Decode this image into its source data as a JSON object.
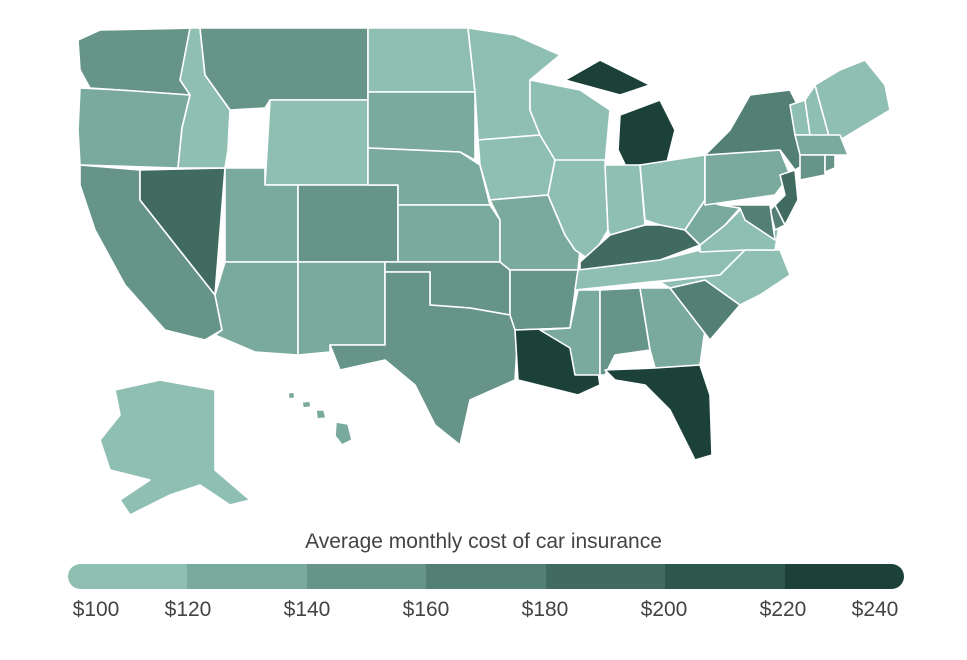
{
  "legend": {
    "title": "Average monthly cost of car insurance",
    "ticks": [
      "$100",
      "$120",
      "$140",
      "$160",
      "$180",
      "$200",
      "$220",
      "$240"
    ],
    "colors": [
      "#8fbfb2",
      "#7aaa9d",
      "#669488",
      "#537f74",
      "#416b60",
      "#2d564c",
      "#1b4139"
    ]
  },
  "states": {
    "WA": 2,
    "OR": 1,
    "CA": 2,
    "NV": 4,
    "ID": 0,
    "MT": 2,
    "WY": 0,
    "UT": 1,
    "AZ": 1,
    "CO": 2,
    "NM": 1,
    "ND": 0,
    "SD": 1,
    "NE": 1,
    "KS": 1,
    "OK": 2,
    "TX": 2,
    "MN": 0,
    "IA": 0,
    "MO": 1,
    "AR": 2,
    "LA": 6,
    "WI": 0,
    "IL": 0,
    "MI": 6,
    "IN": 0,
    "OH": 0,
    "KY": 4,
    "TN": 0,
    "MS": 1,
    "AL": 2,
    "GA": 1,
    "FL": 6,
    "SC": 3,
    "NC": 0,
    "VA": 0,
    "WV": 1,
    "PA": 1,
    "NY": 3,
    "VT": 0,
    "NH": 0,
    "ME": 0,
    "MA": 1,
    "CT": 2,
    "RI": 2,
    "NJ": 4,
    "DE": 3,
    "MD": 3,
    "AK": 0,
    "HI": 1
  }
}
